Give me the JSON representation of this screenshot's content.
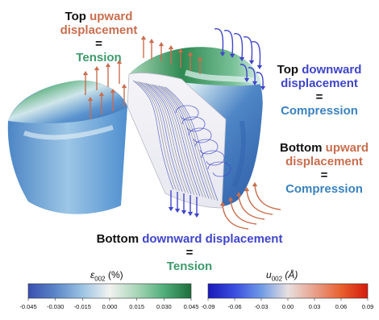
{
  "annotations": {
    "top_up": {
      "line1_a": "Top",
      "line1_b": "upward",
      "line2": "displacement",
      "eq": "=",
      "result": "Tension"
    },
    "top_down": {
      "line1_a": "Top",
      "line1_b": "downward",
      "line2": "displacement",
      "eq": "=",
      "result": "Compression"
    },
    "bottom_up": {
      "line1_a": "Bottom",
      "line1_b": "upward",
      "line2": "displacement",
      "eq": "=",
      "result": "Compression"
    },
    "bottom_down": {
      "line1_a": "Bottom",
      "line1_b": "downward displacement",
      "eq": "=",
      "result": "Tension"
    }
  },
  "colorbars": [
    {
      "label_main": "ε",
      "label_sub": "002",
      "label_unit": " (%)",
      "ticks": [
        "-0.045",
        "-0.030",
        "-0.015",
        "0.000",
        "0.015",
        "0.030",
        "0.045"
      ],
      "colors": [
        "#3a4fb0",
        "#5a86c8",
        "#9cc3e3",
        "#f2f2f0",
        "#a9d6b8",
        "#4fae7a",
        "#1d6e3c"
      ]
    },
    {
      "label_main": "u",
      "label_sub": "002",
      "label_unit": " (Å)",
      "ticks": [
        "-0.09",
        "-0.06",
        "-0.03",
        "0.00",
        "0.03",
        "0.06",
        "0.09"
      ],
      "colors": [
        "#1a1ab8",
        "#3a4ee0",
        "#6e9ae6",
        "#e8e0e0",
        "#e8a08c",
        "#e8602e",
        "#d41a0c"
      ]
    }
  ],
  "colors": {
    "upward": "#c96e4e",
    "downward": "#3f45c9",
    "tension": "#3f9a6c",
    "compression": "#3a82bf"
  }
}
